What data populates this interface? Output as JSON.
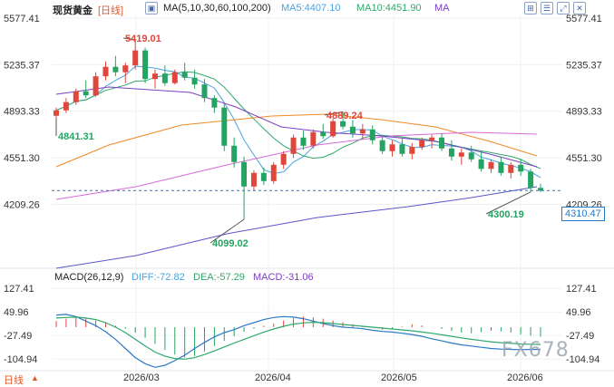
{
  "header": {
    "title": "现货黄金",
    "period": "[日线]",
    "ma_label": "MA(5,10,30,60,100,200)",
    "ma5": "MA5:4407.10",
    "ma10": "MA10:4451.90",
    "ma20": "MA",
    "icons": [
      "expand-icon",
      "layout-icon",
      "settings-icon",
      "fullscreen-icon"
    ]
  },
  "price_axis": {
    "left_ticks": [
      "5577.41",
      "5235.37",
      "4893.33",
      "4551.30",
      "4209.26"
    ],
    "right_ticks": [
      "5577.41",
      "5235.37",
      "4893.33",
      "4551.30",
      "4209.26"
    ],
    "last_price": "4310.47"
  },
  "annotations": {
    "high": "5419.01",
    "low_left": "4841.31",
    "mid_high": "4889.24",
    "low_mid": "4099.02",
    "low_right": "4300.19"
  },
  "macd": {
    "label": "MACD(26,12,9)",
    "diff": "DIFF:-72.82",
    "dea": "DEA:-57.29",
    "macd": "MACD:-31.06",
    "left_ticks": [
      "127.41",
      "49.96",
      "-27.49",
      "-104.94"
    ],
    "right_ticks": [
      "127.41",
      "49.96",
      "-27.49",
      "-104.94"
    ]
  },
  "footer": {
    "period_button": "日线",
    "dates": [
      "2026/03",
      "2026/04",
      "2026/05",
      "2026/06"
    ]
  },
  "watermark": "FX678",
  "colors": {
    "up": "#e0463a",
    "down": "#25a363",
    "ma5": "#4aa3df",
    "ma10": "#2fa86b",
    "ma20": "#7a3fc2",
    "ma60": "#f08a24",
    "ma100": "#d86ad8",
    "ma200": "#5b55c9"
  },
  "chart_data": {
    "type": "candlestick",
    "y_range": [
      4099.02,
      5577.41
    ],
    "candles": [
      {
        "o": 4860,
        "h": 4920,
        "l": 4841,
        "c": 4900
      },
      {
        "o": 4900,
        "h": 4990,
        "l": 4880,
        "c": 4960
      },
      {
        "o": 4960,
        "h": 5060,
        "l": 4940,
        "c": 5040
      },
      {
        "o": 5040,
        "h": 5120,
        "l": 4990,
        "c": 5010
      },
      {
        "o": 5010,
        "h": 5180,
        "l": 5000,
        "c": 5150
      },
      {
        "o": 5150,
        "h": 5260,
        "l": 5120,
        "c": 5220
      },
      {
        "o": 5220,
        "h": 5300,
        "l": 5150,
        "c": 5180
      },
      {
        "o": 5180,
        "h": 5250,
        "l": 5100,
        "c": 5230
      },
      {
        "o": 5230,
        "h": 5419,
        "l": 5200,
        "c": 5340
      },
      {
        "o": 5340,
        "h": 5360,
        "l": 5100,
        "c": 5130
      },
      {
        "o": 5130,
        "h": 5200,
        "l": 5060,
        "c": 5170
      },
      {
        "o": 5170,
        "h": 5230,
        "l": 5080,
        "c": 5100
      },
      {
        "o": 5100,
        "h": 5200,
        "l": 5090,
        "c": 5180
      },
      {
        "o": 5180,
        "h": 5250,
        "l": 5120,
        "c": 5140
      },
      {
        "o": 5140,
        "h": 5200,
        "l": 5060,
        "c": 5090
      },
      {
        "o": 5090,
        "h": 5130,
        "l": 4960,
        "c": 4990
      },
      {
        "o": 4990,
        "h": 5010,
        "l": 4880,
        "c": 4920
      },
      {
        "o": 4920,
        "h": 4950,
        "l": 4600,
        "c": 4640
      },
      {
        "o": 4640,
        "h": 4700,
        "l": 4480,
        "c": 4520
      },
      {
        "o": 4520,
        "h": 4560,
        "l": 4099,
        "c": 4340
      },
      {
        "o": 4340,
        "h": 4460,
        "l": 4310,
        "c": 4440
      },
      {
        "o": 4440,
        "h": 4480,
        "l": 4350,
        "c": 4380
      },
      {
        "o": 4380,
        "h": 4520,
        "l": 4360,
        "c": 4500
      },
      {
        "o": 4500,
        "h": 4600,
        "l": 4470,
        "c": 4580
      },
      {
        "o": 4580,
        "h": 4720,
        "l": 4550,
        "c": 4700
      },
      {
        "o": 4700,
        "h": 4750,
        "l": 4610,
        "c": 4640
      },
      {
        "o": 4640,
        "h": 4760,
        "l": 4620,
        "c": 4740
      },
      {
        "o": 4740,
        "h": 4800,
        "l": 4690,
        "c": 4710
      },
      {
        "o": 4710,
        "h": 4840,
        "l": 4700,
        "c": 4820
      },
      {
        "o": 4820,
        "h": 4889,
        "l": 4760,
        "c": 4780
      },
      {
        "o": 4780,
        "h": 4830,
        "l": 4700,
        "c": 4730
      },
      {
        "o": 4730,
        "h": 4800,
        "l": 4690,
        "c": 4760
      },
      {
        "o": 4760,
        "h": 4790,
        "l": 4650,
        "c": 4680
      },
      {
        "o": 4680,
        "h": 4720,
        "l": 4580,
        "c": 4600
      },
      {
        "o": 4600,
        "h": 4680,
        "l": 4560,
        "c": 4650
      },
      {
        "o": 4650,
        "h": 4700,
        "l": 4560,
        "c": 4580
      },
      {
        "o": 4580,
        "h": 4660,
        "l": 4540,
        "c": 4630
      },
      {
        "o": 4630,
        "h": 4700,
        "l": 4610,
        "c": 4680
      },
      {
        "o": 4680,
        "h": 4720,
        "l": 4620,
        "c": 4700
      },
      {
        "o": 4700,
        "h": 4730,
        "l": 4600,
        "c": 4620
      },
      {
        "o": 4620,
        "h": 4680,
        "l": 4530,
        "c": 4560
      },
      {
        "o": 4560,
        "h": 4620,
        "l": 4500,
        "c": 4590
      },
      {
        "o": 4590,
        "h": 4640,
        "l": 4520,
        "c": 4540
      },
      {
        "o": 4540,
        "h": 4600,
        "l": 4450,
        "c": 4470
      },
      {
        "o": 4470,
        "h": 4540,
        "l": 4440,
        "c": 4520
      },
      {
        "o": 4520,
        "h": 4560,
        "l": 4420,
        "c": 4440
      },
      {
        "o": 4440,
        "h": 4520,
        "l": 4400,
        "c": 4500
      },
      {
        "o": 4500,
        "h": 4540,
        "l": 4420,
        "c": 4450
      },
      {
        "o": 4450,
        "h": 4470,
        "l": 4300,
        "c": 4330
      },
      {
        "o": 4330,
        "h": 4360,
        "l": 4300,
        "c": 4310
      }
    ],
    "macd_range": [
      -140,
      140
    ],
    "macd_hist": [
      20,
      28,
      35,
      30,
      22,
      15,
      5,
      -5,
      -18,
      -35,
      -55,
      -75,
      -90,
      -100,
      -95,
      -80,
      -62,
      -45,
      -30,
      -15,
      -5,
      5,
      12,
      22,
      30,
      35,
      32,
      28,
      22,
      16,
      10,
      4,
      -2,
      -8,
      -5,
      2,
      10,
      6,
      0,
      -6,
      -12,
      -18,
      -20,
      -16,
      -12,
      -14,
      -18,
      -24,
      -28,
      -31
    ],
    "diff": [
      40,
      42,
      35,
      20,
      5,
      -15,
      -40,
      -70,
      -100,
      -120,
      -132,
      -125,
      -110,
      -92,
      -70,
      -50,
      -32,
      -18,
      -8,
      5,
      15,
      25,
      32,
      35,
      33,
      28,
      20,
      12,
      5,
      0,
      -2,
      -5,
      -10,
      -14,
      -16,
      -20,
      -24,
      -30,
      -38,
      -45,
      -52,
      -58,
      -62,
      -66,
      -70,
      -72,
      -73,
      -74,
      -73,
      -73
    ],
    "dea": [
      30,
      32,
      33,
      30,
      25,
      15,
      0,
      -18,
      -40,
      -62,
      -82,
      -95,
      -103,
      -105,
      -100,
      -90,
      -78,
      -65,
      -52,
      -40,
      -28,
      -16,
      -6,
      3,
      10,
      14,
      16,
      15,
      12,
      9,
      6,
      3,
      0,
      -3,
      -6,
      -9,
      -12,
      -16,
      -20,
      -25,
      -30,
      -35,
      -40,
      -44,
      -48,
      -51,
      -53,
      -55,
      -56,
      -57
    ]
  }
}
